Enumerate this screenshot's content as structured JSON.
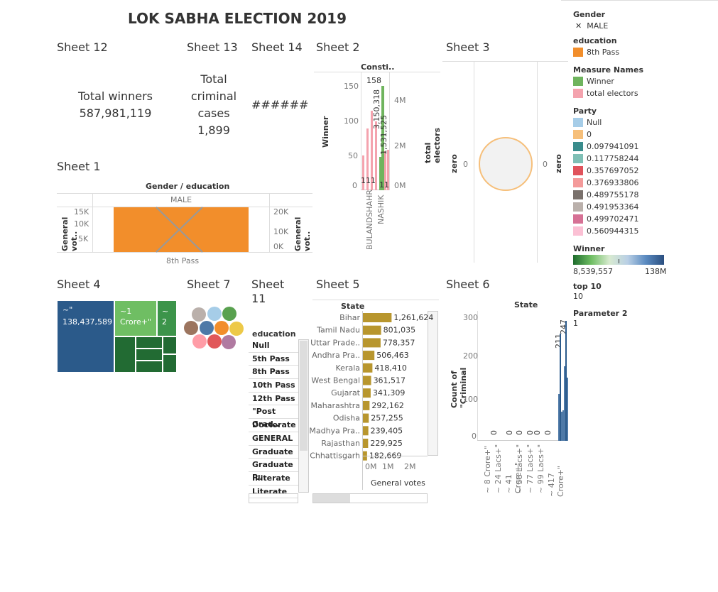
{
  "main_title": "LOK SABHA ELECTION 2019",
  "sheets": {
    "s12": "Sheet 12",
    "s13": "Sheet 13",
    "s14": "Sheet 14",
    "s2": "Sheet 2",
    "s3": "Sheet 3",
    "s1": "Sheet 1",
    "s4": "Sheet 4",
    "s7": "Sheet 7",
    "s11": "Sheet 11",
    "s5": "Sheet 5",
    "s6": "Sheet 6"
  },
  "kpi": {
    "winners_label": "Total winners",
    "winners_value": "587,981,119",
    "criminal_label_1": "Total",
    "criminal_label_2": "criminal",
    "criminal_label_3": "cases",
    "criminal_value": "1,899",
    "sheet14_value": "######"
  },
  "sheet1": {
    "header": "Gender / education",
    "gender": "MALE",
    "education": "8th Pass",
    "left_axis_label": "General vot..",
    "right_axis_label": "General vot..",
    "left_ticks": [
      "15K",
      "10K",
      "5K"
    ],
    "right_ticks": [
      "20K",
      "10K",
      "0K"
    ]
  },
  "sheet2": {
    "header": "Consti..",
    "left_axis_label": "Winner",
    "right_axis_label": "total electors",
    "left_ticks": [
      "150",
      "100",
      "50",
      "0"
    ],
    "right_ticks": [
      "4M",
      "2M",
      "0M"
    ],
    "labels": [
      "158",
      "3,150,318",
      "1,531,525",
      "1",
      "1",
      "1",
      "1",
      "1"
    ],
    "categories": [
      "BULANDSHAHR",
      "NASHIK"
    ]
  },
  "sheet3": {
    "left_axis_label": "zero",
    "right_axis_label": "zero",
    "left_tick": "0",
    "right_tick": "0"
  },
  "sheet4": {
    "big_label": "~\"",
    "big_value": "138,437,589",
    "mid_label_1": "~1",
    "mid_label_2": "Crore+\"",
    "small_label_1": "~",
    "small_label_2": "2"
  },
  "sheet11": {
    "header": "education",
    "items": [
      "Null",
      "5th Pass",
      "8th Pass",
      "10th Pass",
      "12th Pass",
      "\"Post Grad..",
      "Doctorate",
      "GENERAL",
      "Graduate",
      "Graduate P..",
      "Illiterate",
      "Literate"
    ]
  },
  "sheet5": {
    "header": "State",
    "axis_label": "General votes",
    "ticks": [
      "0M",
      "1M",
      "2M"
    ],
    "rows": [
      {
        "state": "Bihar",
        "value": "1,261,624",
        "v": 1261624
      },
      {
        "state": "Tamil Nadu",
        "value": "801,035",
        "v": 801035
      },
      {
        "state": "Uttar Prade..",
        "value": "778,357",
        "v": 778357
      },
      {
        "state": "Andhra Pra..",
        "value": "506,463",
        "v": 506463
      },
      {
        "state": "Kerala",
        "value": "418,410",
        "v": 418410
      },
      {
        "state": "West Bengal",
        "value": "361,517",
        "v": 361517
      },
      {
        "state": "Gujarat",
        "value": "341,309",
        "v": 341309
      },
      {
        "state": "Maharashtra",
        "value": "292,162",
        "v": 292162
      },
      {
        "state": "Odisha",
        "value": "257,255",
        "v": 257255
      },
      {
        "state": "Madhya Pra..",
        "value": "239,405",
        "v": 239405
      },
      {
        "state": "Rajasthan",
        "value": "229,925",
        "v": 229925
      },
      {
        "state": "Chhattisgarh",
        "value": "182,669",
        "v": 182669
      }
    ]
  },
  "sheet6": {
    "header": "State",
    "axis_label": "Count of \"Criminal",
    "ticks": [
      "300",
      "200",
      "100",
      "0"
    ],
    "zero_labels": [
      "0",
      "0",
      "0",
      "0",
      "0",
      "0"
    ],
    "top_labels": [
      "211",
      "247"
    ],
    "categories": [
      "~ 8 Crore+\"",
      "~ 24 Lacs+\"",
      "~ 41 Crore+\"",
      "~ 58 Lacs+\"",
      "~ 77 Lacs+\"",
      "~ 99 Lacs+\"",
      "~ 417 Crore+\""
    ]
  },
  "legend": {
    "gender_title": "Gender",
    "gender_item": "MALE",
    "education_title": "education",
    "education_item": "8th Pass",
    "measure_title": "Measure Names",
    "measure_items": [
      {
        "label": "Winner",
        "color": "#6fb45e"
      },
      {
        "label": "total electors",
        "color": "#f4a3ae"
      }
    ],
    "party_title": "Party",
    "party_items": [
      {
        "label": "Null",
        "color": "#a6cde8"
      },
      {
        "label": "0",
        "color": "#f6bf7a"
      },
      {
        "label": "0.097941091",
        "color": "#3a8c8c"
      },
      {
        "label": "0.117758244",
        "color": "#7fbfb5"
      },
      {
        "label": "0.357697052",
        "color": "#e0535c"
      },
      {
        "label": "0.376933806",
        "color": "#f49a9a"
      },
      {
        "label": "0.489755178",
        "color": "#7a716c"
      },
      {
        "label": "0.491953364",
        "color": "#bab0ab"
      },
      {
        "label": "0.499702471",
        "color": "#d67195"
      },
      {
        "label": "0.560944315",
        "color": "#fbc0d4"
      }
    ],
    "winner_title": "Winner",
    "winner_min": "8,539,557",
    "winner_max": "138M",
    "top10_title": "top 10",
    "top10_value": "10",
    "param2_title": "Parameter 2",
    "param2_value": "1"
  }
}
